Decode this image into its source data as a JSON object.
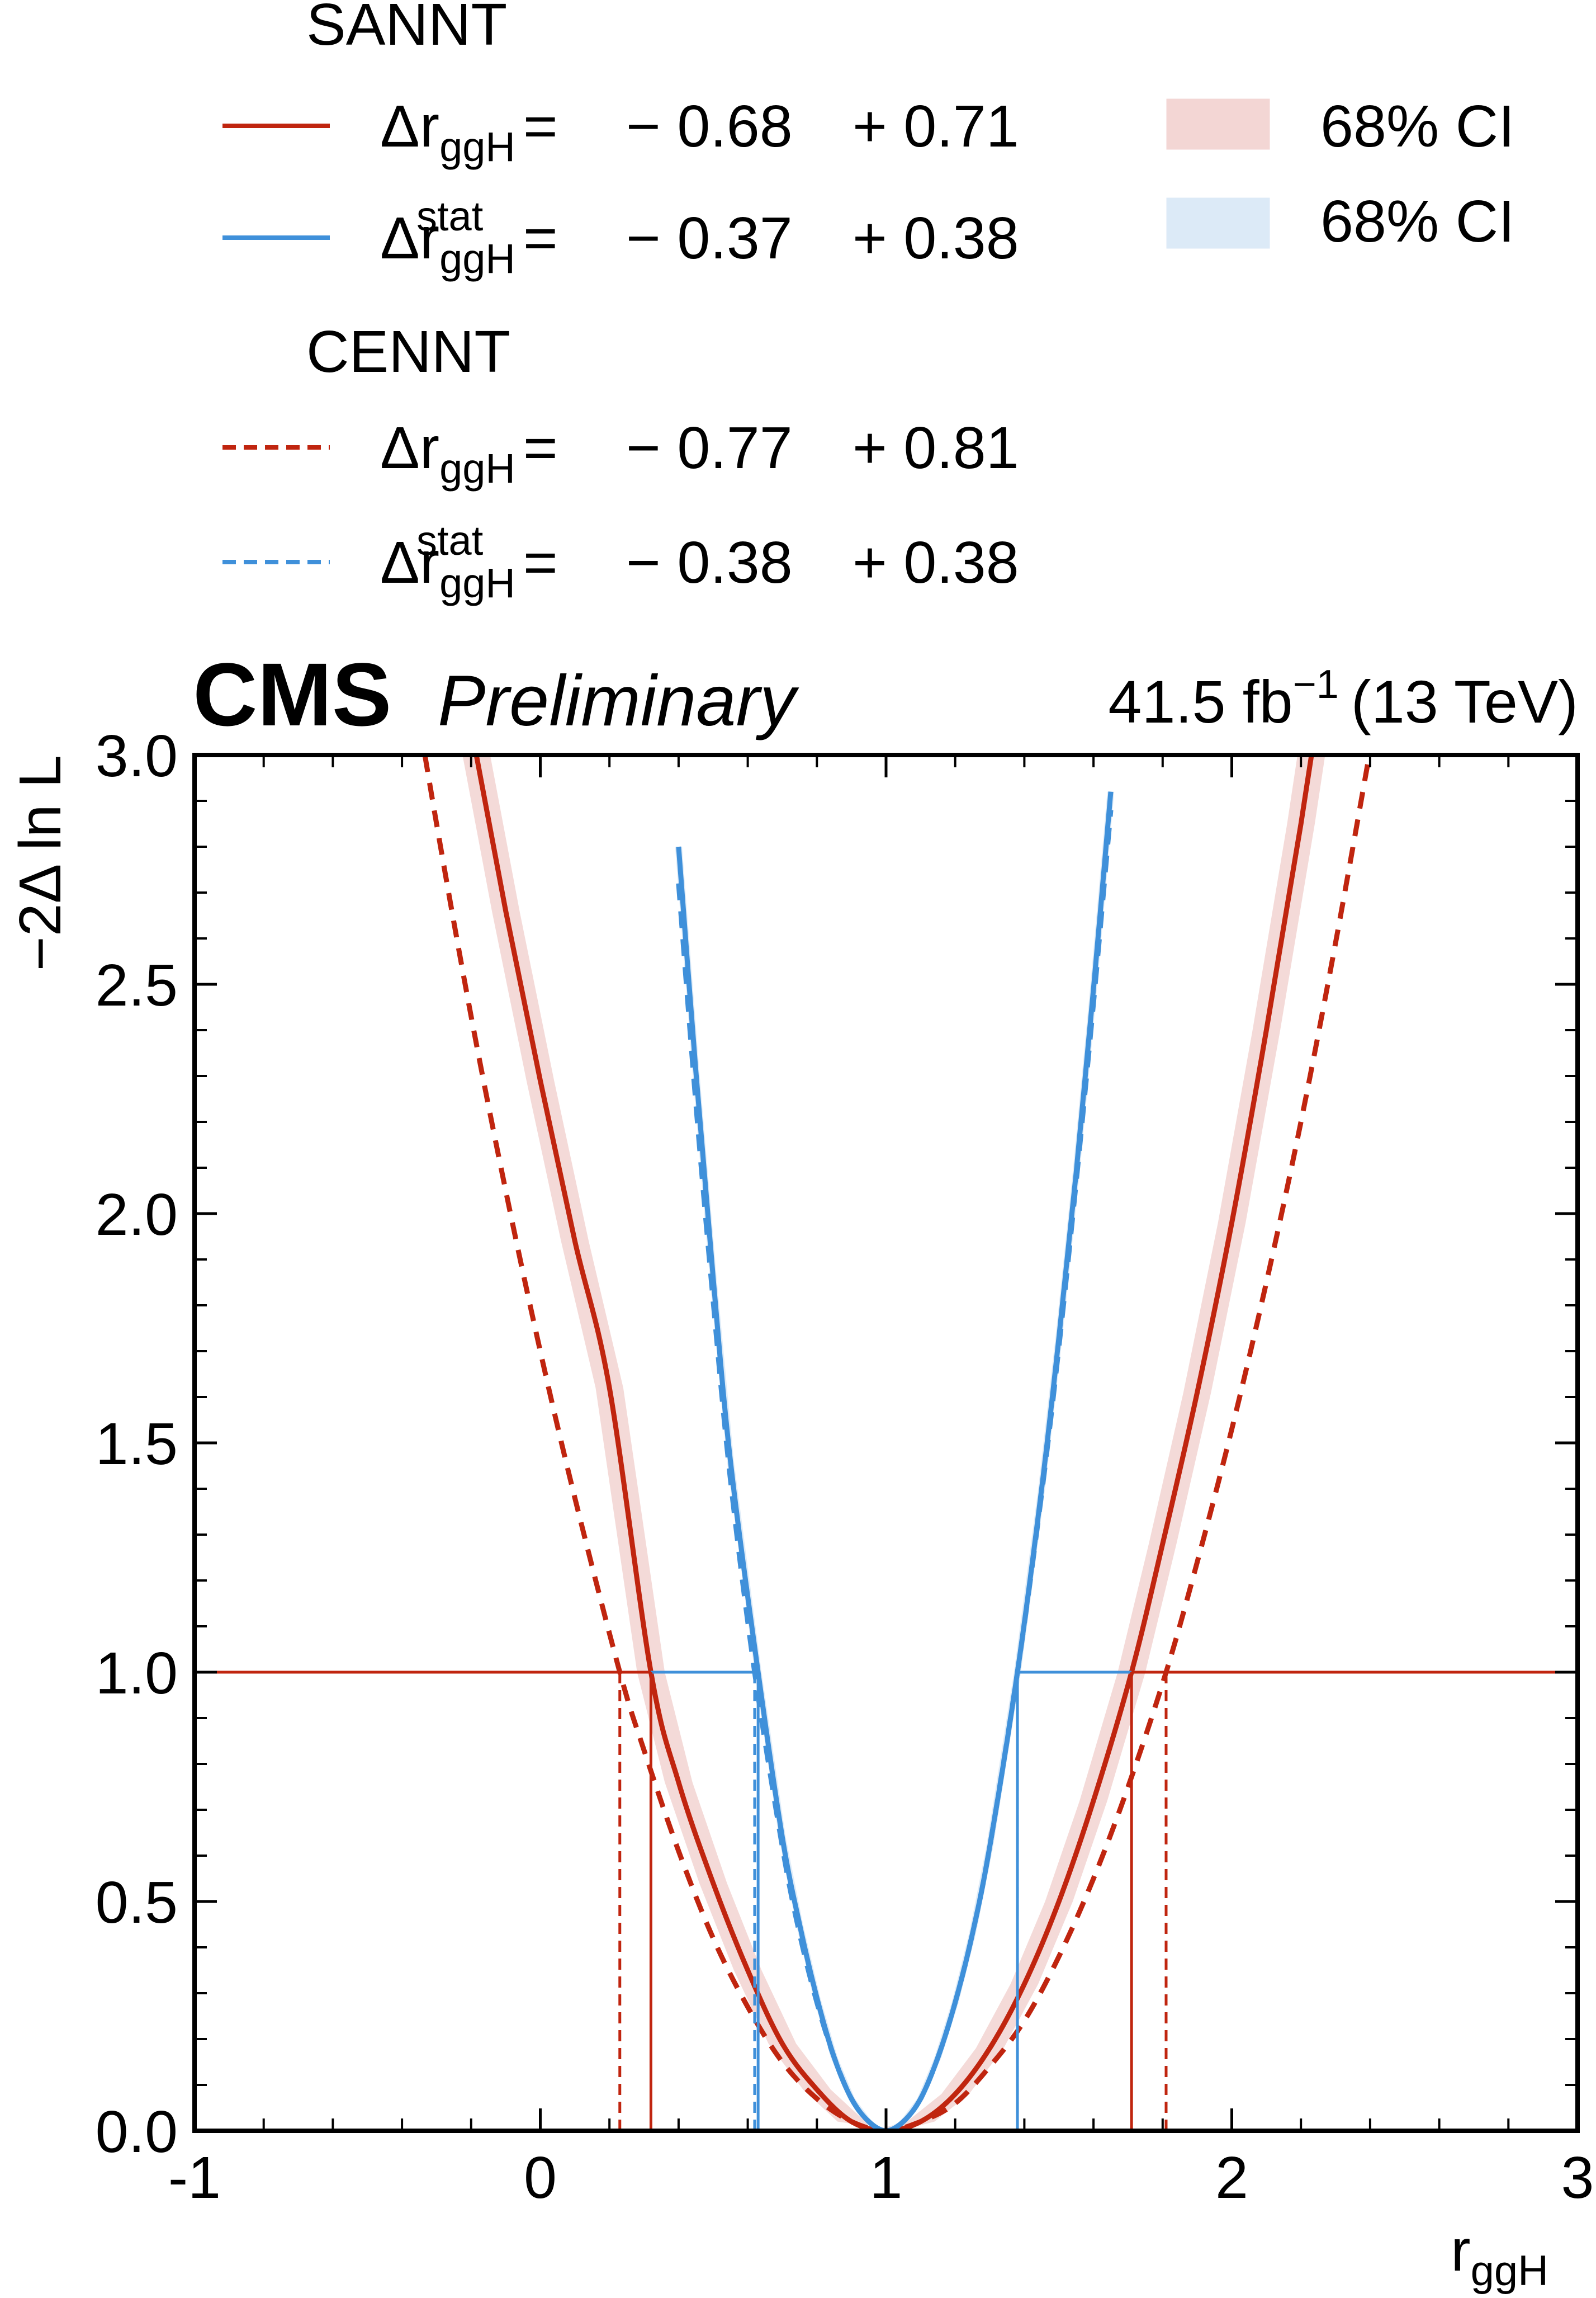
{
  "colors": {
    "red": "#C0250F",
    "blue": "#3F90DA",
    "red_band": "#F3D6D4",
    "blue_band": "#DCEAF7",
    "axis": "#000000"
  },
  "legend": {
    "groups": [
      {
        "title": "SANNT",
        "entries": [
          {
            "series": "sannt_total",
            "label": "Δr",
            "sub": "ggH",
            "sup": "",
            "eq": "=",
            "down": "− 0.68",
            "up": "+ 0.71"
          },
          {
            "series": "sannt_stat",
            "label": "Δr",
            "sub": "ggH",
            "sup": "stat",
            "eq": "=",
            "down": "− 0.37",
            "up": "+ 0.38"
          }
        ]
      },
      {
        "title": "CENNT",
        "entries": [
          {
            "series": "cennt_total",
            "label": "Δr",
            "sub": "ggH",
            "sup": "",
            "eq": "=",
            "down": "− 0.77",
            "up": "+ 0.81"
          },
          {
            "series": "cennt_stat",
            "label": "Δr",
            "sub": "ggH",
            "sup": "stat",
            "eq": "=",
            "down": "− 0.38",
            "up": "+ 0.38"
          }
        ]
      }
    ],
    "bands": [
      {
        "label": "68% CI",
        "color": "red_band"
      },
      {
        "label": "68% CI",
        "color": "blue_band"
      }
    ]
  },
  "header": {
    "cms": "CMS",
    "preliminary": "Preliminary",
    "lumi": "41.5 fb",
    "lumi_sup": "−1",
    "energy": "(13 TeV)"
  },
  "chart_data": {
    "type": "line",
    "xlabel": "r",
    "xlabel_sub": "ggH",
    "ylabel": "−2Δ ln L",
    "xlim": [
      -1,
      3
    ],
    "ylim": [
      0,
      3
    ],
    "x_ticks": [
      -1,
      0,
      1,
      2,
      3
    ],
    "x_tick_labels": [
      "-1",
      "0",
      "1",
      "2",
      "3"
    ],
    "y_ticks": [
      0,
      0.5,
      1,
      1.5,
      2,
      2.5,
      3
    ],
    "y_tick_labels": [
      "0.0",
      "0.5",
      "1.0",
      "1.5",
      "2.0",
      "2.5",
      "3.0"
    ],
    "best_fit": 1.0,
    "threshold": 1.0,
    "series": [
      {
        "id": "sannt_total",
        "style": "solid",
        "color": "red",
        "x": [
          -0.3,
          -0.2,
          -0.1,
          0.0,
          0.1,
          0.2,
          0.32,
          0.4,
          0.5,
          0.6,
          0.7,
          0.8,
          0.9,
          1.0,
          1.1,
          1.2,
          1.3,
          1.4,
          1.5,
          1.6,
          1.71,
          1.8,
          1.9,
          2.0,
          2.1,
          2.2,
          2.3
        ],
        "y": [
          3.48,
          3.06,
          2.66,
          2.29,
          1.94,
          1.62,
          1.0,
          0.76,
          0.54,
          0.35,
          0.19,
          0.09,
          0.02,
          0.0,
          0.02,
          0.08,
          0.18,
          0.32,
          0.5,
          0.72,
          1.0,
          1.28,
          1.61,
          1.98,
          2.4,
          2.85,
          3.35
        ]
      },
      {
        "id": "sannt_stat",
        "style": "solid",
        "color": "blue",
        "x": [
          0.4,
          0.45,
          0.5,
          0.55,
          0.63,
          0.7,
          0.75,
          0.8,
          0.85,
          0.9,
          0.95,
          1.0,
          1.05,
          1.1,
          1.15,
          1.2,
          1.25,
          1.3,
          1.38,
          1.45,
          1.5,
          1.55,
          1.6,
          1.65
        ],
        "y": [
          2.8,
          2.31,
          1.86,
          1.46,
          1.0,
          0.64,
          0.45,
          0.29,
          0.16,
          0.07,
          0.02,
          0.0,
          0.02,
          0.07,
          0.16,
          0.28,
          0.43,
          0.62,
          1.0,
          1.4,
          1.73,
          2.09,
          2.49,
          2.92
        ]
      },
      {
        "id": "cennt_total",
        "style": "dashed",
        "color": "red",
        "x": [
          -0.4,
          -0.3,
          -0.2,
          -0.1,
          0.0,
          0.1,
          0.23,
          0.3,
          0.4,
          0.5,
          0.6,
          0.7,
          0.8,
          0.9,
          1.0,
          1.1,
          1.2,
          1.3,
          1.4,
          1.5,
          1.6,
          1.7,
          1.81,
          1.9,
          2.0,
          2.1,
          2.2,
          2.3,
          2.4
        ],
        "y": [
          3.3,
          2.85,
          2.43,
          2.05,
          1.7,
          1.38,
          1.0,
          0.83,
          0.61,
          0.42,
          0.27,
          0.15,
          0.07,
          0.02,
          0.0,
          0.02,
          0.06,
          0.14,
          0.24,
          0.38,
          0.55,
          0.75,
          1.0,
          1.24,
          1.53,
          1.85,
          2.2,
          2.59,
          3.01
        ]
      },
      {
        "id": "cennt_stat",
        "style": "dashed",
        "color": "blue",
        "x": [
          0.4,
          0.45,
          0.5,
          0.55,
          0.62,
          0.7,
          0.75,
          0.8,
          0.85,
          0.9,
          0.95,
          1.0,
          1.05,
          1.1,
          1.15,
          1.2,
          1.25,
          1.3,
          1.38,
          1.45,
          1.5,
          1.55,
          1.6,
          1.65
        ],
        "y": [
          2.72,
          2.24,
          1.81,
          1.42,
          1.0,
          0.62,
          0.43,
          0.28,
          0.16,
          0.07,
          0.02,
          0.0,
          0.02,
          0.07,
          0.16,
          0.28,
          0.43,
          0.62,
          1.0,
          1.39,
          1.71,
          2.07,
          2.46,
          2.88
        ]
      }
    ],
    "bands": [
      {
        "series": "sannt_total",
        "color": "red_band",
        "half_width": 0.04
      },
      {
        "series": "sannt_stat",
        "color": "blue_band",
        "half_width": 0.01
      }
    ],
    "intervals": [
      {
        "series": "sannt_total",
        "style": "solid",
        "color": "red",
        "lo": 0.32,
        "hi": 1.71
      },
      {
        "series": "sannt_stat",
        "style": "solid",
        "color": "blue",
        "lo": 0.63,
        "hi": 1.38
      },
      {
        "series": "cennt_total",
        "style": "dashed",
        "color": "red",
        "lo": 0.23,
        "hi": 1.81
      },
      {
        "series": "cennt_stat",
        "style": "dashed",
        "color": "blue",
        "lo": 0.62,
        "hi": 1.38
      }
    ]
  }
}
